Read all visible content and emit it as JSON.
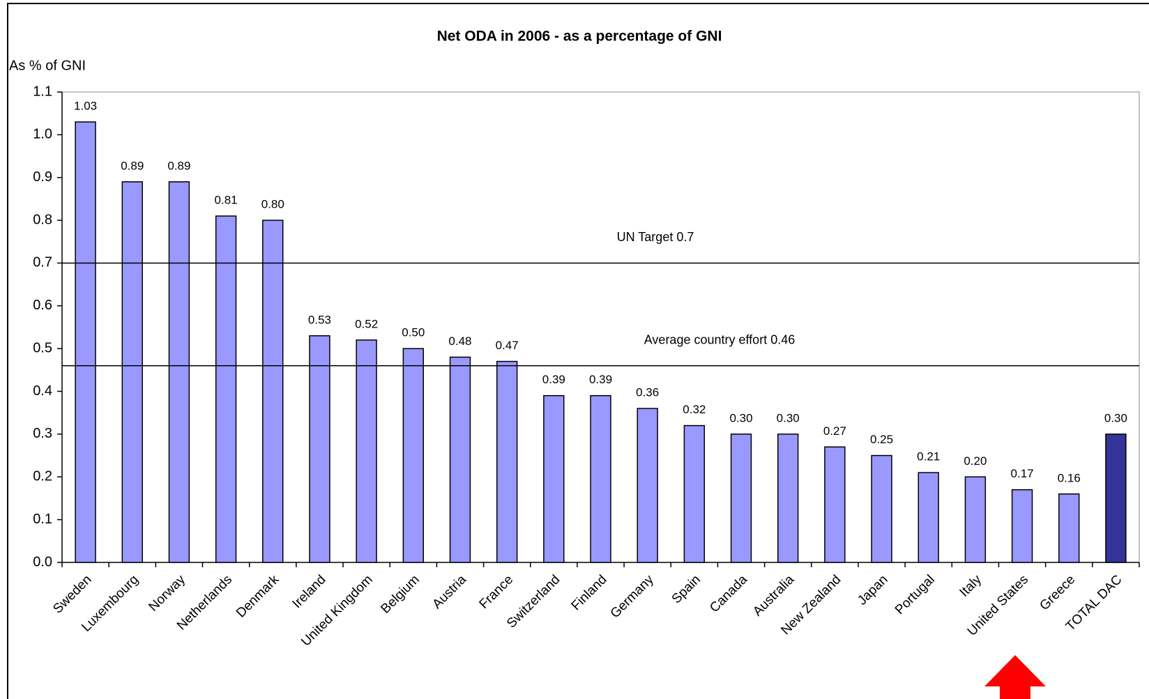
{
  "chart_data": {
    "type": "bar",
    "title": "Net ODA in 2006 - as a percentage of GNI",
    "y_label": "As % of GNI",
    "categories": [
      "Sweden",
      "Luxembourg",
      "Norway",
      "Netherlands",
      "Denmark",
      "Ireland",
      "United Kingdom",
      "Belgium",
      "Austria",
      "France",
      "Switzerland",
      "Finland",
      "Germany",
      "Spain",
      "Canada",
      "Australia",
      "New Zealand",
      "Japan",
      "Portugal",
      "Italy",
      "United States",
      "Greece",
      "TOTAL DAC"
    ],
    "values": [
      1.03,
      0.89,
      0.89,
      0.81,
      0.8,
      0.53,
      0.52,
      0.5,
      0.48,
      0.47,
      0.39,
      0.39,
      0.36,
      0.32,
      0.3,
      0.3,
      0.27,
      0.25,
      0.21,
      0.2,
      0.17,
      0.16,
      0.3
    ],
    "value_labels": [
      "1.03",
      "0.89",
      "0.89",
      "0.81",
      "0.80",
      "0.53",
      "0.52",
      "0.50",
      "0.48",
      "0.47",
      "0.39",
      "0.39",
      "0.36",
      "0.32",
      "0.30",
      "0.30",
      "0.27",
      "0.25",
      "0.21",
      "0.20",
      "0.17",
      "0.16",
      "0.30"
    ],
    "colors": [
      "#9999ff",
      "#9999ff",
      "#9999ff",
      "#9999ff",
      "#9999ff",
      "#9999ff",
      "#9999ff",
      "#9999ff",
      "#9999ff",
      "#9999ff",
      "#9999ff",
      "#9999ff",
      "#9999ff",
      "#9999ff",
      "#9999ff",
      "#9999ff",
      "#9999ff",
      "#9999ff",
      "#9999ff",
      "#9999ff",
      "#9999ff",
      "#9999ff",
      "#333399"
    ],
    "ylim": [
      0,
      1.1
    ],
    "yticks": [
      {
        "value": 0,
        "label": "0.0"
      },
      0.1,
      0.2,
      0.3,
      0.4,
      0.5,
      0.6,
      0.7,
      0.8,
      0.9,
      {
        "value": 1,
        "label": "1.0"
      },
      1.1
    ],
    "reference_lines": [
      {
        "label": "UN Target 0.7",
        "value": 0.7
      },
      {
        "label": "Average country effort 0.46",
        "value": 0.46
      }
    ]
  }
}
